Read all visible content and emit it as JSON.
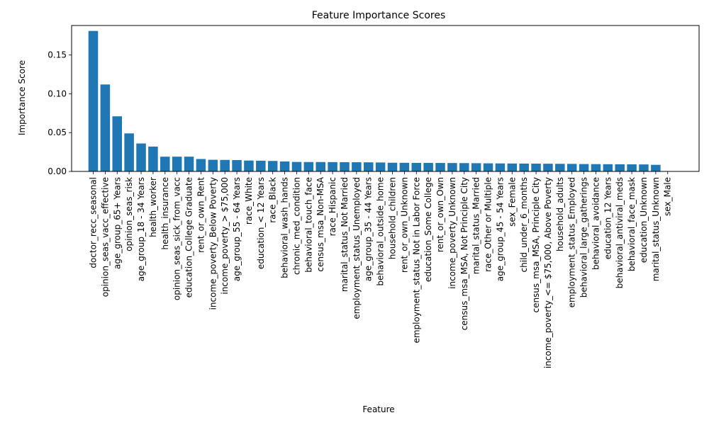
{
  "chart_data": {
    "type": "bar",
    "title": "Feature Importance Scores",
    "xlabel": "Feature",
    "ylabel": "Importance Score",
    "ylim": [
      0,
      0.188
    ],
    "yticks": [
      "0.00",
      "0.05",
      "0.10",
      "0.15"
    ],
    "bar_color": "#1f77b4",
    "grid": false,
    "categories": [
      "doctor_recc_seasonal",
      "opinion_seas_vacc_effective",
      "age_group_65+ Years",
      "opinion_seas_risk",
      "age_group_18 - 34 Years",
      "health_worker",
      "health_insurance",
      "opinion_seas_sick_from_vacc",
      "education_College Graduate",
      "rent_or_own_Rent",
      "income_poverty_Below Poverty",
      "income_poverty_> $75,000",
      "age_group_55 - 64 Years",
      "race_White",
      "education_< 12 Years",
      "race_Black",
      "behavioral_wash_hands",
      "chronic_med_condition",
      "behavioral_touch_face",
      "census_msa_Non-MSA",
      "race_Hispanic",
      "marital_status_Not Married",
      "employment_status_Unemployed",
      "age_group_35 - 44 Years",
      "behavioral_outside_home",
      "household_children",
      "rent_or_own_Unknown",
      "employment_status_Not in Labor Force",
      "education_Some College",
      "rent_or_own_Own",
      "income_poverty_Unknown",
      "census_msa_MSA, Not Principle  City",
      "marital_status_Married",
      "race_Other or Multiple",
      "age_group_45 - 54 Years",
      "sex_Female",
      "child_under_6_months",
      "census_msa_MSA, Principle City",
      "income_poverty_<= $75,000, Above Poverty",
      "household_adults",
      "employment_status_Employed",
      "behavioral_large_gatherings",
      "behavioral_avoidance",
      "education_12 Years",
      "behavioral_antiviral_meds",
      "behavioral_face_mask",
      "education_Unknown",
      "marital_status_Unknown",
      "sex_Male"
    ],
    "values": [
      0.181,
      0.112,
      0.071,
      0.049,
      0.036,
      0.032,
      0.019,
      0.019,
      0.019,
      0.016,
      0.015,
      0.0148,
      0.0146,
      0.014,
      0.0138,
      0.0135,
      0.0128,
      0.0122,
      0.0121,
      0.0121,
      0.012,
      0.0119,
      0.0118,
      0.0117,
      0.0115,
      0.0112,
      0.0111,
      0.011,
      0.011,
      0.0109,
      0.0108,
      0.0107,
      0.0106,
      0.0104,
      0.0103,
      0.0102,
      0.0101,
      0.01,
      0.0099,
      0.0098,
      0.0097,
      0.0095,
      0.0094,
      0.0093,
      0.0092,
      0.0091,
      0.009,
      0.0085,
      0.0
    ]
  }
}
